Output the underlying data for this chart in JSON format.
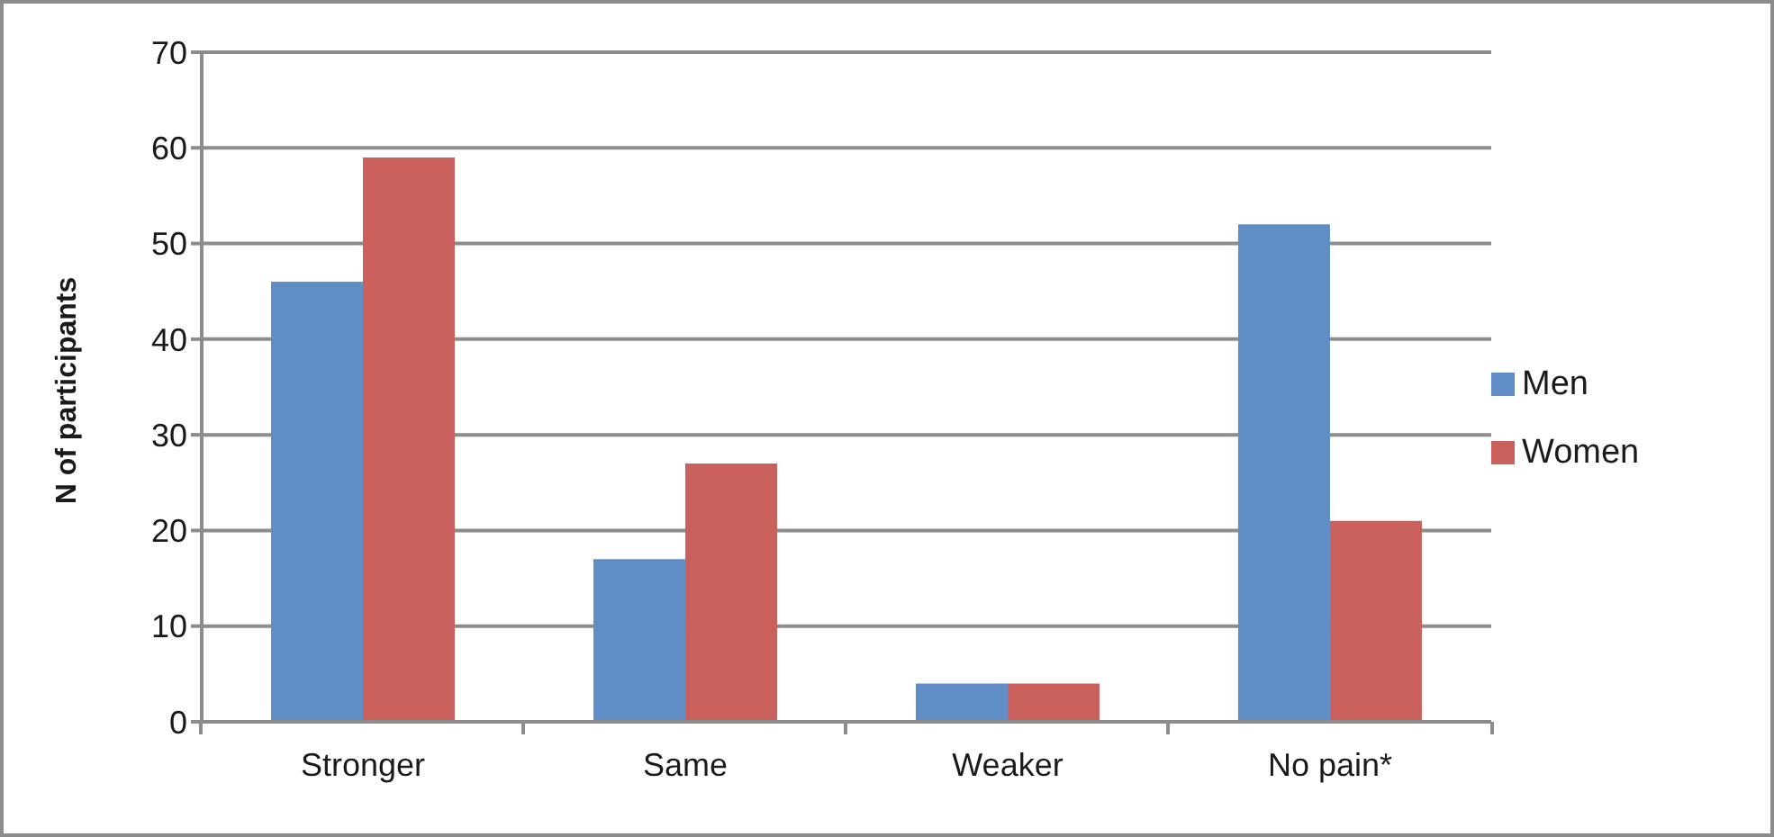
{
  "chart_data": {
    "type": "bar",
    "ylabel": "N of participants",
    "categories": [
      "Stronger",
      "Same",
      "Weaker",
      "No pain*"
    ],
    "series": [
      {
        "name": "Men",
        "color": "#5f8ec6",
        "values": [
          46,
          17,
          4,
          52
        ]
      },
      {
        "name": "Women",
        "color": "#c9605c",
        "values": [
          59,
          27,
          4,
          21
        ]
      }
    ],
    "ylim": [
      0,
      70
    ],
    "yticks": [
      0,
      10,
      20,
      30,
      40,
      50,
      60,
      70
    ],
    "grid": "y",
    "legend": "right"
  }
}
